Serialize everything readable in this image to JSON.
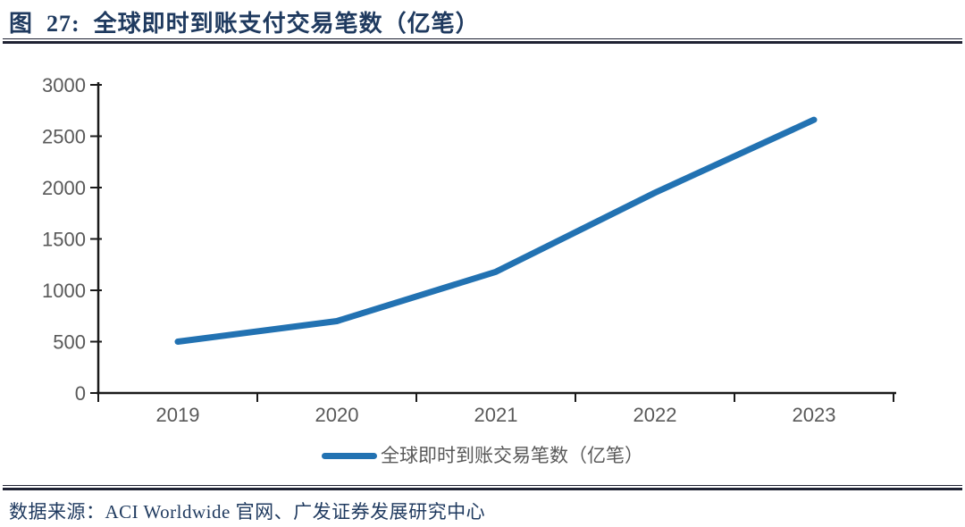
{
  "header": {
    "figure_label": "图  27:  全球即时到账支付交易笔数（亿笔）"
  },
  "chart_data": {
    "type": "line",
    "title": "全球即时到账支付交易笔数（亿笔）",
    "categories": [
      "2019",
      "2020",
      "2021",
      "2022",
      "2023"
    ],
    "series": [
      {
        "name": "全球即时到账交易笔数（亿笔）",
        "color": "#2272B2",
        "values": [
          500,
          700,
          1180,
          1950,
          2660
        ]
      }
    ],
    "ylim": [
      0,
      3000
    ],
    "ytick_step": 500,
    "grid": false,
    "legend_position": "bottom"
  },
  "footer": {
    "source": "数据来源：ACI Worldwide 官网、广发证券发展研究中心"
  },
  "theme": {
    "title_color": "#1F3A5F",
    "line_color": "#2272B2",
    "axis_color": "#1A1A1A",
    "tick_label_color": "#595959",
    "rule_color": "#1F2233",
    "background": "#FFFFFF"
  }
}
